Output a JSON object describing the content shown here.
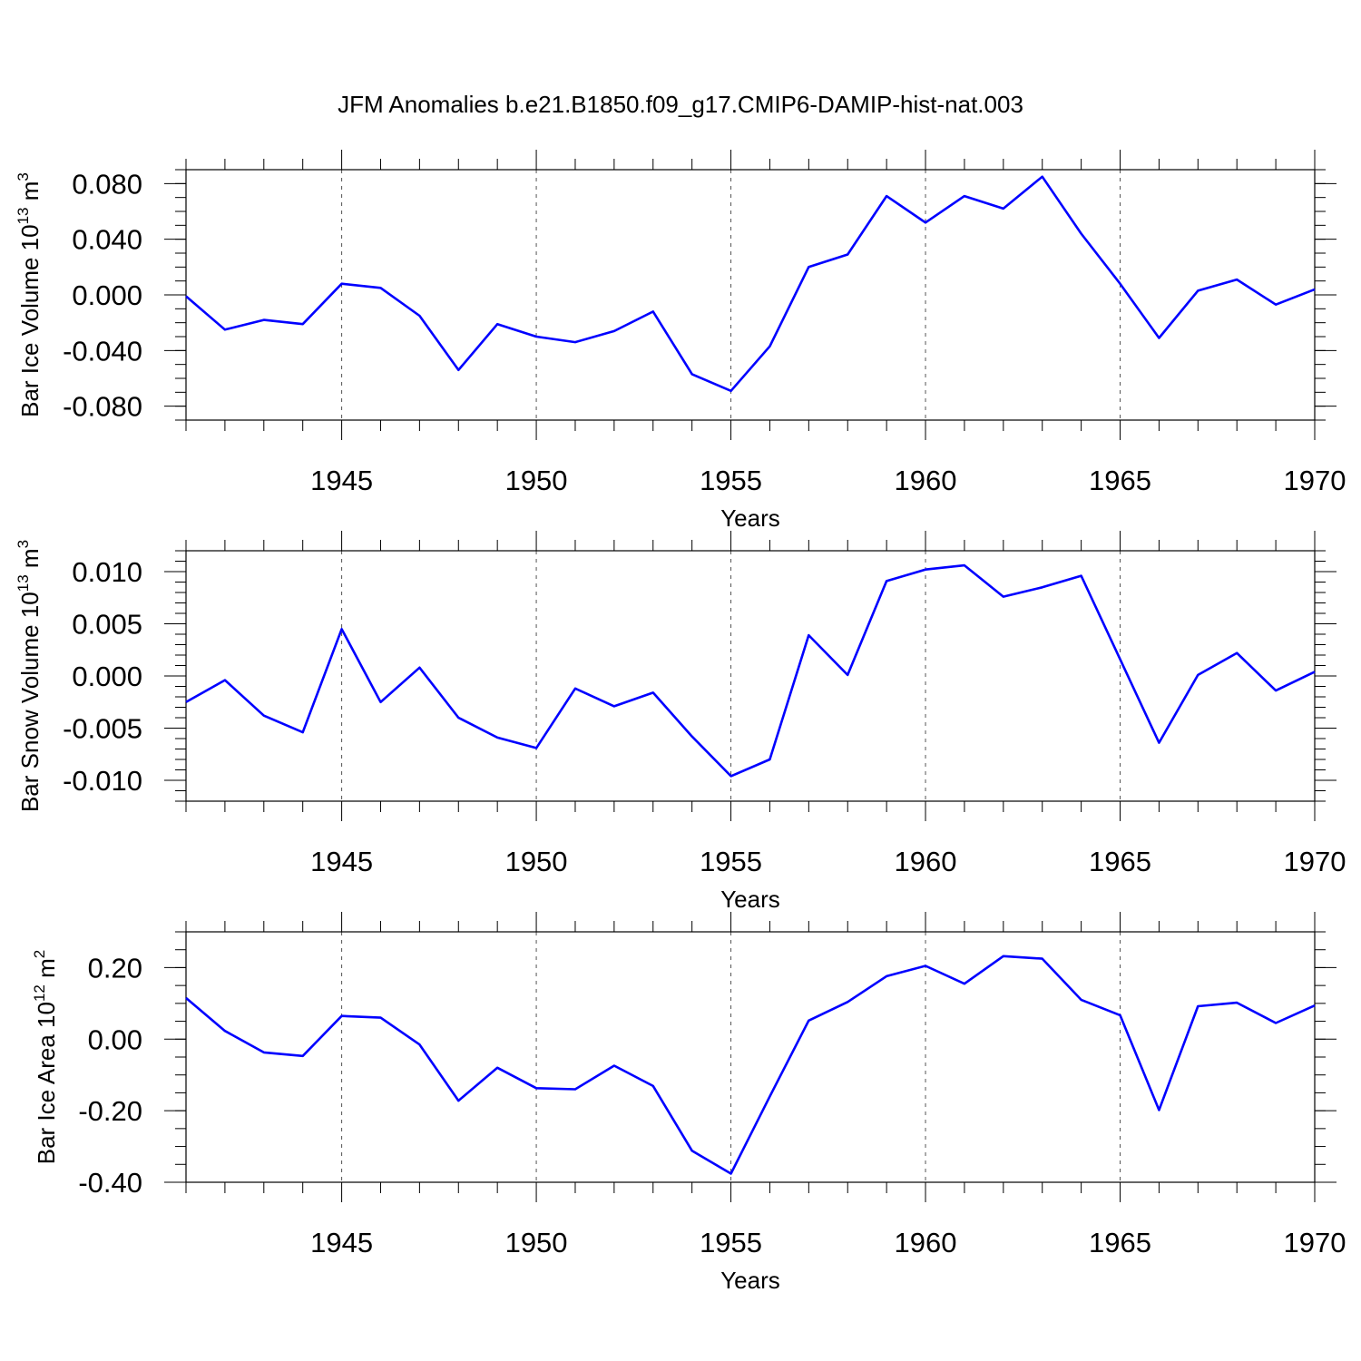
{
  "title": "JFM Anomalies b.e21.B1850.f09_g17.CMIP6-DAMIP-hist-nat.003",
  "colors": {
    "line": "#0000ff",
    "axis": "#000000",
    "grid": "#555555",
    "background": "#ffffff"
  },
  "chart_data": [
    {
      "type": "line",
      "ylabel_main": "Bar Ice Volume 10",
      "ylabel_sup": "13",
      "ylabel_unit": " m",
      "ylabel_unit_sup": "3",
      "xlabel": "Years",
      "xlim": [
        1941,
        1970
      ],
      "ylim": [
        -0.09,
        0.09
      ],
      "x_ticks": [
        "1945",
        "1950",
        "1955",
        "1960",
        "1965",
        "1970"
      ],
      "y_ticks": [
        "0.080",
        "0.040",
        "0.000",
        "-0.040",
        "-0.080"
      ],
      "grid": "vertical dashed at major x ticks",
      "x": [
        1941,
        1942,
        1943,
        1944,
        1945,
        1946,
        1947,
        1948,
        1949,
        1950,
        1951,
        1952,
        1953,
        1954,
        1955,
        1956,
        1957,
        1958,
        1959,
        1960,
        1961,
        1962,
        1963,
        1964,
        1965,
        1966,
        1967,
        1968,
        1969,
        1970
      ],
      "values": [
        -0.001,
        -0.025,
        -0.018,
        -0.021,
        0.008,
        0.005,
        -0.015,
        -0.054,
        -0.021,
        -0.03,
        -0.034,
        -0.026,
        -0.012,
        -0.057,
        -0.069,
        -0.037,
        0.02,
        0.029,
        0.071,
        0.052,
        0.071,
        0.062,
        0.085,
        0.044,
        0.008,
        -0.031,
        0.003,
        0.011,
        -0.007,
        0.004
      ]
    },
    {
      "type": "line",
      "ylabel_main": "Bar Snow Volume 10",
      "ylabel_sup": "13",
      "ylabel_unit": " m",
      "ylabel_unit_sup": "3",
      "xlabel": "Years",
      "xlim": [
        1941,
        1970
      ],
      "ylim": [
        -0.012,
        0.012
      ],
      "x_ticks": [
        "1945",
        "1950",
        "1955",
        "1960",
        "1965",
        "1970"
      ],
      "y_ticks": [
        "0.010",
        "0.005",
        "0.000",
        "-0.005",
        "-0.010"
      ],
      "grid": "vertical dashed at major x ticks",
      "x": [
        1941,
        1942,
        1943,
        1944,
        1945,
        1946,
        1947,
        1948,
        1949,
        1950,
        1951,
        1952,
        1953,
        1954,
        1955,
        1956,
        1957,
        1958,
        1959,
        1960,
        1961,
        1962,
        1963,
        1964,
        1965,
        1966,
        1967,
        1968,
        1969,
        1970
      ],
      "values": [
        -0.0025,
        -0.0004,
        -0.0038,
        -0.0054,
        0.0045,
        -0.0025,
        0.0008,
        -0.004,
        -0.0059,
        -0.0069,
        -0.0012,
        -0.0029,
        -0.0016,
        -0.0058,
        -0.0096,
        -0.008,
        0.0039,
        0.0001,
        0.0091,
        0.0102,
        0.0106,
        0.0076,
        0.0085,
        0.0096,
        0.0016,
        -0.0064,
        0.0001,
        0.0022,
        -0.0014,
        0.0004
      ]
    },
    {
      "type": "line",
      "ylabel_main": "Bar Ice Area 10",
      "ylabel_sup": "12",
      "ylabel_unit": " m",
      "ylabel_unit_sup": "2",
      "xlabel": "Years",
      "xlim": [
        1941,
        1970
      ],
      "ylim": [
        -0.4,
        0.3
      ],
      "x_ticks": [
        "1945",
        "1950",
        "1955",
        "1960",
        "1965",
        "1970"
      ],
      "y_ticks": [
        "0.20",
        "0.00",
        "-0.20",
        "-0.40"
      ],
      "grid": "vertical dashed at major x ticks",
      "x": [
        1941,
        1942,
        1943,
        1944,
        1945,
        1946,
        1947,
        1948,
        1949,
        1950,
        1951,
        1952,
        1953,
        1954,
        1955,
        1956,
        1957,
        1958,
        1959,
        1960,
        1961,
        1962,
        1963,
        1964,
        1965,
        1966,
        1967,
        1968,
        1969,
        1970
      ],
      "values": [
        0.115,
        0.023,
        -0.037,
        -0.047,
        0.065,
        0.06,
        -0.015,
        -0.172,
        -0.08,
        -0.137,
        -0.14,
        -0.074,
        -0.131,
        -0.312,
        -0.376,
        -0.16,
        0.052,
        0.104,
        0.176,
        0.205,
        0.155,
        0.232,
        0.225,
        0.11,
        0.067,
        -0.198,
        0.092,
        0.102,
        0.045,
        0.094
      ]
    }
  ]
}
